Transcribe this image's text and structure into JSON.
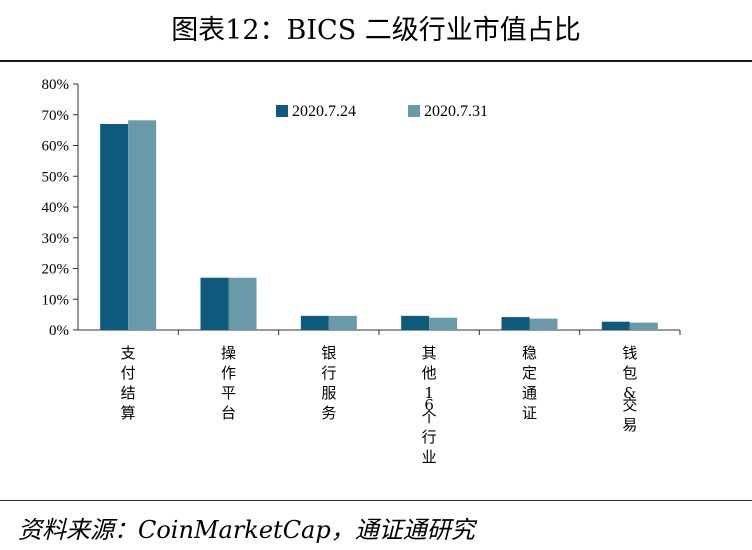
{
  "title": "图表12：BICS 二级行业市值占比",
  "source": "资料来源：CoinMarketCap，通证通研究",
  "colors": {
    "series1": "#0e5a7c",
    "series2": "#6a9aaa",
    "axis": "#333333"
  },
  "chart_data": {
    "type": "bar",
    "categories": [
      "支付结算",
      "操作平台",
      "银行服务",
      "其他16个行业",
      "稳定通证",
      "钱包&交易"
    ],
    "series": [
      {
        "name": "2020.7.24",
        "values": [
          0.67,
          0.17,
          0.046,
          0.046,
          0.042,
          0.027
        ]
      },
      {
        "name": "2020.7.31",
        "values": [
          0.682,
          0.17,
          0.046,
          0.04,
          0.037,
          0.024
        ]
      }
    ],
    "ylim": [
      0,
      0.8
    ],
    "yticks": [
      "0%",
      "10%",
      "20%",
      "30%",
      "40%",
      "50%",
      "60%",
      "70%",
      "80%"
    ],
    "legend_position": "top-center",
    "grid": false
  }
}
